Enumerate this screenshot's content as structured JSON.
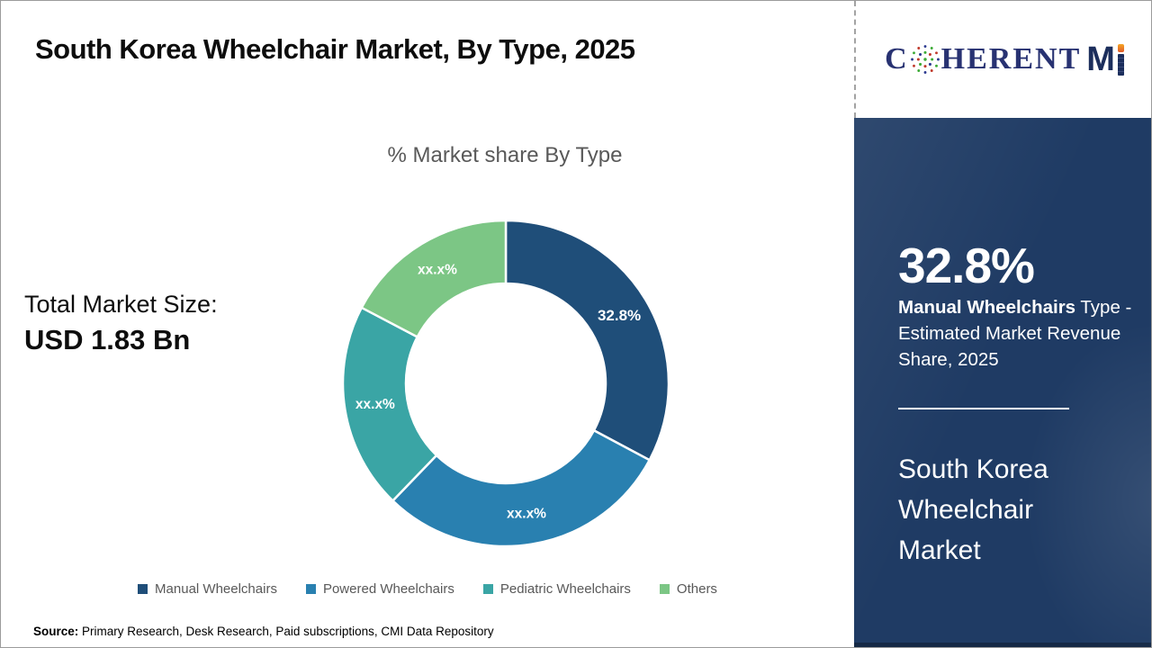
{
  "header": {
    "title": "South Korea Wheelchair Market, By Type, 2025"
  },
  "logo": {
    "c": "C",
    "herent": "HERENT",
    "m": "M"
  },
  "left_stat": {
    "label": "Total Market Size:",
    "value": "USD 1.83 Bn"
  },
  "chart_data": {
    "type": "pie",
    "donut": true,
    "title": "% Market share By Type",
    "categories": [
      "Manual Wheelchairs",
      "Powered Wheelchairs",
      "Pediatric Wheelchairs",
      "Others"
    ],
    "values": [
      32.8,
      29.4,
      20.5,
      17.3
    ],
    "slice_labels": [
      "32.8%",
      "xx.x%",
      "xx.x%",
      "xx.x%"
    ],
    "colors": [
      "#1f4e79",
      "#2980b0",
      "#3aa5a5",
      "#7cc685"
    ],
    "legend_position": "bottom",
    "start_angle_deg": 0,
    "outer_radius_px": 181,
    "inner_radius_px": 111
  },
  "sidebar": {
    "stat_value": "32.8%",
    "desc_bold": "Manual Wheelchairs",
    "desc_rest": " Type - Estimated Market Revenue Share, 2025",
    "market_name": "South Korea Wheelchair Market",
    "bg_color": "#1f3b64"
  },
  "footer": {
    "source_label": "Source:",
    "source_text": " Primary Research, Desk Research, Paid subscriptions, CMI Data Repository"
  }
}
